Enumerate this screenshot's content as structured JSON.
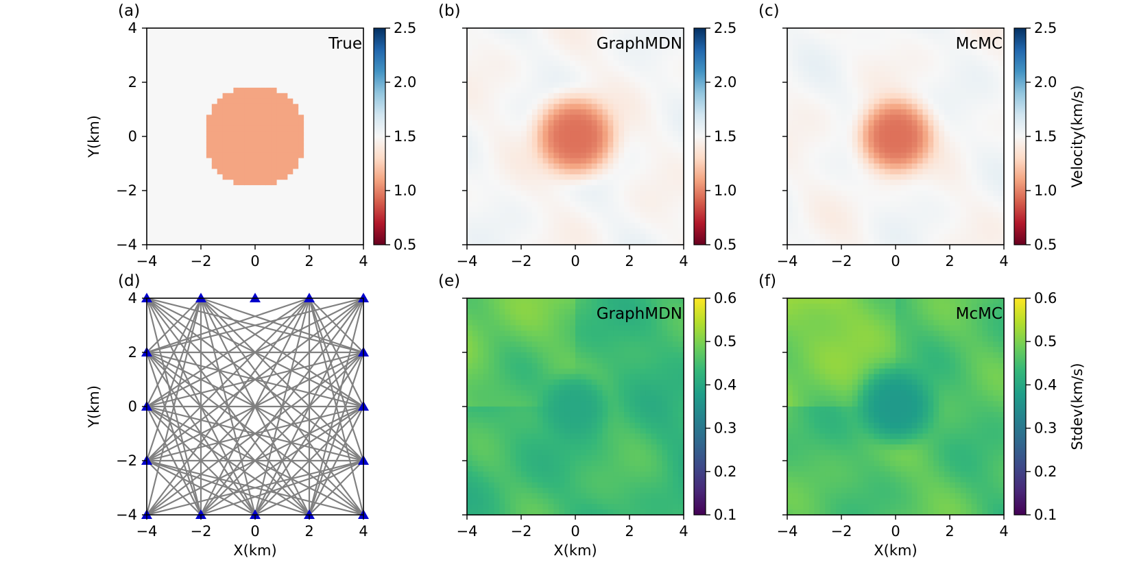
{
  "chart_data": [
    {
      "type": "heatmap",
      "panel_label": "(a)",
      "title": "True",
      "ylabel": "Y(km)",
      "xlabel": "",
      "xlim": [
        -4,
        4
      ],
      "ylim": [
        -4,
        4
      ],
      "xticks": [
        "−4",
        "−2",
        "0",
        "2",
        "4"
      ],
      "yticks": [
        "−4",
        "−2",
        "0",
        "2",
        "4"
      ],
      "colormap": "RdBu",
      "clim": [
        0.5,
        2.5
      ],
      "colorbar_ticks": [
        "0.5",
        "1.0",
        "1.5",
        "2.0",
        "2.5"
      ],
      "colorbar_label": "",
      "background_value": 1.5,
      "anomaly": {
        "center": [
          0,
          0
        ],
        "radius": 1.9,
        "value": 1.1
      }
    },
    {
      "type": "heatmap",
      "panel_label": "(b)",
      "title": "GraphMDN",
      "ylabel": "",
      "xlabel": "",
      "xlim": [
        -4,
        4
      ],
      "ylim": [
        -4,
        4
      ],
      "xticks": [
        "−4",
        "−2",
        "0",
        "2",
        "4"
      ],
      "yticks": [],
      "colormap": "RdBu",
      "clim": [
        0.5,
        2.5
      ],
      "colorbar_ticks": [
        "0.5",
        "1.0",
        "1.5",
        "2.0",
        "2.5"
      ],
      "colorbar_label": "",
      "background_value": 1.5,
      "anomaly": {
        "center": [
          0,
          0
        ],
        "radius": 1.5,
        "value": 0.95
      }
    },
    {
      "type": "heatmap",
      "panel_label": "(c)",
      "title": "McMC",
      "ylabel": "",
      "xlabel": "",
      "xlim": [
        -4,
        4
      ],
      "ylim": [
        -4,
        4
      ],
      "xticks": [
        "−4",
        "−2",
        "0",
        "2",
        "4"
      ],
      "yticks": [],
      "colormap": "RdBu",
      "clim": [
        0.5,
        2.5
      ],
      "colorbar_ticks": [
        "0.5",
        "1.0",
        "1.5",
        "2.0",
        "2.5"
      ],
      "colorbar_label": "Velocity(km/s)",
      "background_value": 1.5,
      "anomaly": {
        "center": [
          0,
          0
        ],
        "radius": 1.4,
        "value": 0.95
      }
    },
    {
      "type": "scatter",
      "panel_label": "(d)",
      "title": "",
      "ylabel": "Y(km)",
      "xlabel": "X(km)",
      "xlim": [
        -4,
        4
      ],
      "ylim": [
        -4,
        4
      ],
      "xticks": [
        "−4",
        "−2",
        "0",
        "2",
        "4"
      ],
      "yticks": [
        "−4",
        "−2",
        "0",
        "2",
        "4"
      ],
      "stations": [
        [
          -4,
          4
        ],
        [
          -2,
          4
        ],
        [
          0,
          4
        ],
        [
          2,
          4
        ],
        [
          4,
          4
        ],
        [
          -4,
          2
        ],
        [
          4,
          2
        ],
        [
          -4,
          0
        ],
        [
          4,
          0
        ],
        [
          -4,
          -2
        ],
        [
          4,
          -2
        ],
        [
          -4,
          -4
        ],
        [
          -2,
          -4
        ],
        [
          0,
          -4
        ],
        [
          2,
          -4
        ],
        [
          4,
          -4
        ]
      ],
      "station_color": "#0000cc",
      "ray_color": "#808080"
    },
    {
      "type": "heatmap",
      "panel_label": "(e)",
      "title": "GraphMDN",
      "ylabel": "",
      "xlabel": "X(km)",
      "xlim": [
        -4,
        4
      ],
      "ylim": [
        -4,
        4
      ],
      "xticks": [
        "−4",
        "−2",
        "0",
        "2",
        "4"
      ],
      "yticks": [],
      "colormap": "viridis",
      "clim": [
        0.1,
        0.6
      ],
      "colorbar_ticks": [
        "0.1",
        "0.2",
        "0.3",
        "0.4",
        "0.5",
        "0.6"
      ],
      "colorbar_label": "",
      "background_value": 0.45,
      "anomaly": {
        "center": [
          0,
          0
        ],
        "radius": 1.2,
        "value": 0.4
      }
    },
    {
      "type": "heatmap",
      "panel_label": "(f)",
      "title": "McMC",
      "ylabel": "",
      "xlabel": "X(km)",
      "xlim": [
        -4,
        4
      ],
      "ylim": [
        -4,
        4
      ],
      "xticks": [
        "−4",
        "−2",
        "0",
        "2",
        "4"
      ],
      "yticks": [],
      "colormap": "viridis",
      "clim": [
        0.1,
        0.6
      ],
      "colorbar_ticks": [
        "0.1",
        "0.2",
        "0.3",
        "0.4",
        "0.5",
        "0.6"
      ],
      "colorbar_label": "Stdev(km/s)",
      "background_value": 0.47,
      "anomaly": {
        "center": [
          0,
          0
        ],
        "radius": 1.4,
        "value": 0.37
      }
    }
  ]
}
